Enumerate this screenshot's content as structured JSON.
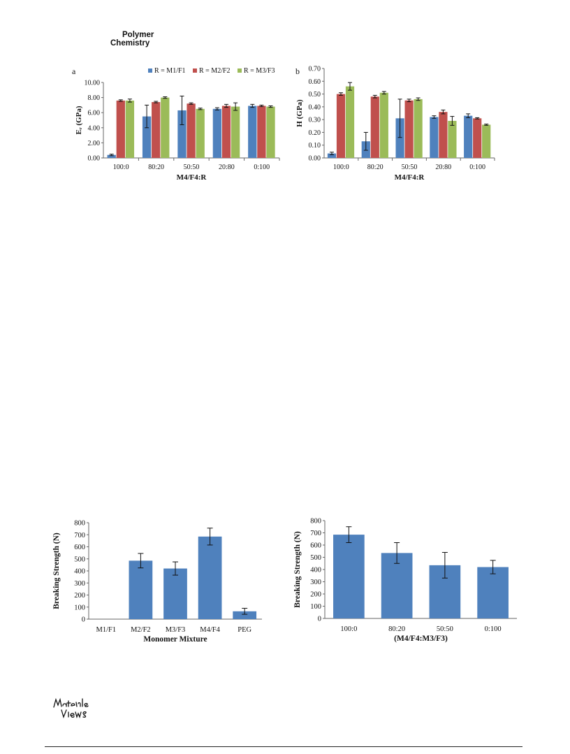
{
  "header": {
    "journal_line1": "Polymer",
    "journal_line2": "Chemistry"
  },
  "footer": {
    "logo": "Materials Views",
    "logo_icon": "materials-views-logo"
  },
  "chart_data": [
    {
      "panel": "a",
      "type": "bar",
      "xlabel": "M4/F4:R",
      "ylabel": "Eᵣ (GPa)",
      "categories": [
        "100:0",
        "80:20",
        "50:50",
        "20:80",
        "0:100"
      ],
      "ylim": [
        0,
        10
      ],
      "yticks": [
        "0.00",
        "2.00",
        "4.00",
        "6.00",
        "8.00",
        "10.00"
      ],
      "legend_position": "top",
      "grid": false,
      "series": [
        {
          "name": "R = M1/F1",
          "color": "#4f81bd",
          "values": [
            0.4,
            5.5,
            6.3,
            6.5,
            6.9
          ],
          "errors": [
            0.1,
            1.5,
            1.9,
            0.15,
            0.2
          ]
        },
        {
          "name": "R = M2/F2",
          "color": "#c0504d",
          "values": [
            7.6,
            7.4,
            7.2,
            6.9,
            6.9
          ],
          "errors": [
            0.1,
            0.1,
            0.1,
            0.2,
            0.1
          ]
        },
        {
          "name": "R = M3/F3",
          "color": "#9bbb59",
          "values": [
            7.6,
            8.0,
            6.5,
            6.8,
            6.8
          ],
          "errors": [
            0.2,
            0.1,
            0.1,
            0.5,
            0.1
          ]
        }
      ]
    },
    {
      "panel": "b",
      "type": "bar",
      "xlabel": "M4/F4:R",
      "ylabel": "H (GPa)",
      "categories": [
        "100:0",
        "80:20",
        "50:50",
        "20:80",
        "0:100"
      ],
      "ylim": [
        0,
        0.7
      ],
      "yticks": [
        "0.00",
        "0.10",
        "0.20",
        "0.30",
        "0.40",
        "0.50",
        "0.60",
        "0.70"
      ],
      "grid": false,
      "series": [
        {
          "name": "R = M1/F1",
          "color": "#4f81bd",
          "values": [
            0.035,
            0.13,
            0.31,
            0.32,
            0.33
          ],
          "errors": [
            0.01,
            0.07,
            0.15,
            0.01,
            0.015
          ]
        },
        {
          "name": "R = M2/F2",
          "color": "#c0504d",
          "values": [
            0.5,
            0.48,
            0.45,
            0.36,
            0.31
          ],
          "errors": [
            0.01,
            0.01,
            0.01,
            0.015,
            0.005
          ]
        },
        {
          "name": "R = M3/F3",
          "color": "#9bbb59",
          "values": [
            0.56,
            0.51,
            0.46,
            0.29,
            0.26
          ],
          "errors": [
            0.03,
            0.01,
            0.01,
            0.035,
            0.005
          ]
        }
      ]
    },
    {
      "type": "bar",
      "xlabel": "Monomer Mixture",
      "ylabel": "Breaking Strength (N)",
      "categories": [
        "M1/F1",
        "M2/F2",
        "M3/F3",
        "M4/F4",
        "PEG"
      ],
      "ylim": [
        0,
        800
      ],
      "yticks": [
        "0",
        "100",
        "200",
        "300",
        "400",
        "500",
        "600",
        "700",
        "800"
      ],
      "grid": false,
      "series": [
        {
          "color": "#4f81bd",
          "values": [
            0,
            485,
            420,
            685,
            65
          ],
          "errors": [
            0,
            60,
            55,
            70,
            25
          ]
        }
      ]
    },
    {
      "type": "bar",
      "xlabel": "(M4/F4:M3/F3)",
      "ylabel": "Breaking Strength (N)",
      "categories": [
        "100:0",
        "80:20",
        "50:50",
        "0:100"
      ],
      "ylim": [
        0,
        800
      ],
      "yticks": [
        "0",
        "100",
        "200",
        "300",
        "400",
        "500",
        "600",
        "700",
        "800"
      ],
      "grid": false,
      "series": [
        {
          "color": "#4f81bd",
          "values": [
            685,
            535,
            435,
            420
          ],
          "errors": [
            65,
            85,
            105,
            55
          ]
        }
      ]
    }
  ]
}
